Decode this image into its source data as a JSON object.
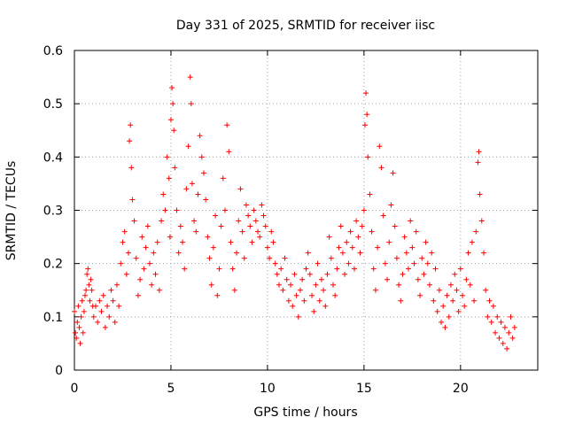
{
  "chart_data": {
    "type": "scatter",
    "title": "Day 331 of 2025, SRMTID for receiver iisc",
    "xlabel": "GPS time / hours",
    "ylabel": "SRMTID / TECUs",
    "xlim": [
      0,
      24
    ],
    "ylim": [
      0,
      0.6
    ],
    "xticks": [
      0,
      5,
      10,
      15,
      20
    ],
    "xtick_labels": [
      "0",
      "5",
      "10",
      "15",
      "20"
    ],
    "yticks": [
      0,
      0.1,
      0.2,
      0.3,
      0.4,
      0.5,
      0.6
    ],
    "ytick_labels": [
      "0",
      "0.1",
      "0.2",
      "0.3",
      "0.4",
      "0.5",
      "0.6"
    ],
    "grid": true,
    "marker": "+",
    "color": "#ff0000",
    "series": [
      {
        "name": "SRMTID",
        "points": [
          [
            0.0,
            0.11
          ],
          [
            0.05,
            0.07
          ],
          [
            0.1,
            0.06
          ],
          [
            0.15,
            0.09
          ],
          [
            0.2,
            0.12
          ],
          [
            0.25,
            0.08
          ],
          [
            0.3,
            0.05
          ],
          [
            0.35,
            0.1
          ],
          [
            0.4,
            0.13
          ],
          [
            0.45,
            0.07
          ],
          [
            0.5,
            0.11
          ],
          [
            0.55,
            0.14
          ],
          [
            0.6,
            0.15
          ],
          [
            0.65,
            0.18
          ],
          [
            0.7,
            0.19
          ],
          [
            0.75,
            0.16
          ],
          [
            0.8,
            0.13
          ],
          [
            0.85,
            0.17
          ],
          [
            0.9,
            0.15
          ],
          [
            0.95,
            0.12
          ],
          [
            1.0,
            0.1
          ],
          [
            1.1,
            0.12
          ],
          [
            1.2,
            0.09
          ],
          [
            1.3,
            0.13
          ],
          [
            1.4,
            0.11
          ],
          [
            1.5,
            0.14
          ],
          [
            1.6,
            0.08
          ],
          [
            1.7,
            0.12
          ],
          [
            1.8,
            0.1
          ],
          [
            1.9,
            0.15
          ],
          [
            2.0,
            0.13
          ],
          [
            2.1,
            0.09
          ],
          [
            2.2,
            0.16
          ],
          [
            2.3,
            0.12
          ],
          [
            2.4,
            0.2
          ],
          [
            2.5,
            0.24
          ],
          [
            2.6,
            0.26
          ],
          [
            2.7,
            0.18
          ],
          [
            2.8,
            0.22
          ],
          [
            2.85,
            0.43
          ],
          [
            2.9,
            0.46
          ],
          [
            2.95,
            0.38
          ],
          [
            3.0,
            0.32
          ],
          [
            3.1,
            0.28
          ],
          [
            3.2,
            0.21
          ],
          [
            3.3,
            0.14
          ],
          [
            3.4,
            0.17
          ],
          [
            3.5,
            0.25
          ],
          [
            3.6,
            0.19
          ],
          [
            3.7,
            0.23
          ],
          [
            3.8,
            0.27
          ],
          [
            3.9,
            0.2
          ],
          [
            4.0,
            0.16
          ],
          [
            4.1,
            0.22
          ],
          [
            4.2,
            0.18
          ],
          [
            4.3,
            0.24
          ],
          [
            4.4,
            0.15
          ],
          [
            4.5,
            0.28
          ],
          [
            4.6,
            0.33
          ],
          [
            4.7,
            0.3
          ],
          [
            4.8,
            0.4
          ],
          [
            4.9,
            0.36
          ],
          [
            4.95,
            0.25
          ],
          [
            5.0,
            0.47
          ],
          [
            5.05,
            0.53
          ],
          [
            5.1,
            0.5
          ],
          [
            5.15,
            0.45
          ],
          [
            5.2,
            0.38
          ],
          [
            5.3,
            0.3
          ],
          [
            5.4,
            0.22
          ],
          [
            5.5,
            0.27
          ],
          [
            5.6,
            0.24
          ],
          [
            5.7,
            0.19
          ],
          [
            5.8,
            0.34
          ],
          [
            5.9,
            0.42
          ],
          [
            6.0,
            0.55
          ],
          [
            6.05,
            0.5
          ],
          [
            6.1,
            0.35
          ],
          [
            6.2,
            0.28
          ],
          [
            6.3,
            0.26
          ],
          [
            6.4,
            0.33
          ],
          [
            6.5,
            0.44
          ],
          [
            6.6,
            0.4
          ],
          [
            6.7,
            0.37
          ],
          [
            6.8,
            0.32
          ],
          [
            6.9,
            0.25
          ],
          [
            7.0,
            0.21
          ],
          [
            7.1,
            0.16
          ],
          [
            7.2,
            0.23
          ],
          [
            7.3,
            0.29
          ],
          [
            7.4,
            0.14
          ],
          [
            7.5,
            0.19
          ],
          [
            7.6,
            0.27
          ],
          [
            7.7,
            0.36
          ],
          [
            7.8,
            0.3
          ],
          [
            7.9,
            0.46
          ],
          [
            8.0,
            0.41
          ],
          [
            8.1,
            0.24
          ],
          [
            8.2,
            0.19
          ],
          [
            8.3,
            0.15
          ],
          [
            8.4,
            0.22
          ],
          [
            8.5,
            0.28
          ],
          [
            8.6,
            0.34
          ],
          [
            8.7,
            0.26
          ],
          [
            8.8,
            0.21
          ],
          [
            8.9,
            0.31
          ],
          [
            9.0,
            0.29
          ],
          [
            9.1,
            0.27
          ],
          [
            9.2,
            0.24
          ],
          [
            9.3,
            0.3
          ],
          [
            9.4,
            0.28
          ],
          [
            9.5,
            0.26
          ],
          [
            9.6,
            0.25
          ],
          [
            9.7,
            0.31
          ],
          [
            9.8,
            0.29
          ],
          [
            9.9,
            0.27
          ],
          [
            10.0,
            0.23
          ],
          [
            10.1,
            0.21
          ],
          [
            10.2,
            0.26
          ],
          [
            10.3,
            0.24
          ],
          [
            10.4,
            0.2
          ],
          [
            10.5,
            0.18
          ],
          [
            10.6,
            0.16
          ],
          [
            10.7,
            0.19
          ],
          [
            10.8,
            0.15
          ],
          [
            10.9,
            0.21
          ],
          [
            11.0,
            0.17
          ],
          [
            11.1,
            0.13
          ],
          [
            11.2,
            0.16
          ],
          [
            11.3,
            0.12
          ],
          [
            11.4,
            0.18
          ],
          [
            11.5,
            0.14
          ],
          [
            11.6,
            0.1
          ],
          [
            11.7,
            0.15
          ],
          [
            11.8,
            0.17
          ],
          [
            11.9,
            0.13
          ],
          [
            12.0,
            0.19
          ],
          [
            12.1,
            0.22
          ],
          [
            12.2,
            0.18
          ],
          [
            12.3,
            0.14
          ],
          [
            12.4,
            0.11
          ],
          [
            12.5,
            0.16
          ],
          [
            12.6,
            0.2
          ],
          [
            12.7,
            0.13
          ],
          [
            12.8,
            0.17
          ],
          [
            12.9,
            0.15
          ],
          [
            13.0,
            0.12
          ],
          [
            13.1,
            0.18
          ],
          [
            13.2,
            0.25
          ],
          [
            13.3,
            0.21
          ],
          [
            13.4,
            0.16
          ],
          [
            13.5,
            0.14
          ],
          [
            13.6,
            0.19
          ],
          [
            13.7,
            0.23
          ],
          [
            13.8,
            0.27
          ],
          [
            13.9,
            0.22
          ],
          [
            14.0,
            0.18
          ],
          [
            14.1,
            0.24
          ],
          [
            14.2,
            0.2
          ],
          [
            14.3,
            0.26
          ],
          [
            14.4,
            0.23
          ],
          [
            14.5,
            0.19
          ],
          [
            14.6,
            0.28
          ],
          [
            14.7,
            0.25
          ],
          [
            14.8,
            0.22
          ],
          [
            14.9,
            0.27
          ],
          [
            15.0,
            0.3
          ],
          [
            15.05,
            0.46
          ],
          [
            15.1,
            0.52
          ],
          [
            15.15,
            0.48
          ],
          [
            15.2,
            0.4
          ],
          [
            15.3,
            0.33
          ],
          [
            15.4,
            0.26
          ],
          [
            15.5,
            0.19
          ],
          [
            15.6,
            0.15
          ],
          [
            15.7,
            0.23
          ],
          [
            15.8,
            0.42
          ],
          [
            15.9,
            0.38
          ],
          [
            16.0,
            0.29
          ],
          [
            16.1,
            0.2
          ],
          [
            16.2,
            0.17
          ],
          [
            16.3,
            0.24
          ],
          [
            16.4,
            0.31
          ],
          [
            16.5,
            0.37
          ],
          [
            16.6,
            0.27
          ],
          [
            16.7,
            0.21
          ],
          [
            16.8,
            0.16
          ],
          [
            16.9,
            0.13
          ],
          [
            17.0,
            0.18
          ],
          [
            17.1,
            0.25
          ],
          [
            17.2,
            0.22
          ],
          [
            17.3,
            0.19
          ],
          [
            17.4,
            0.28
          ],
          [
            17.5,
            0.23
          ],
          [
            17.6,
            0.2
          ],
          [
            17.7,
            0.26
          ],
          [
            17.8,
            0.17
          ],
          [
            17.9,
            0.14
          ],
          [
            18.0,
            0.21
          ],
          [
            18.1,
            0.18
          ],
          [
            18.2,
            0.24
          ],
          [
            18.3,
            0.2
          ],
          [
            18.4,
            0.16
          ],
          [
            18.5,
            0.22
          ],
          [
            18.6,
            0.13
          ],
          [
            18.7,
            0.19
          ],
          [
            18.8,
            0.11
          ],
          [
            18.9,
            0.15
          ],
          [
            19.0,
            0.09
          ],
          [
            19.1,
            0.12
          ],
          [
            19.2,
            0.08
          ],
          [
            19.3,
            0.14
          ],
          [
            19.4,
            0.1
          ],
          [
            19.5,
            0.16
          ],
          [
            19.6,
            0.13
          ],
          [
            19.7,
            0.18
          ],
          [
            19.8,
            0.15
          ],
          [
            19.9,
            0.11
          ],
          [
            20.0,
            0.19
          ],
          [
            20.1,
            0.14
          ],
          [
            20.2,
            0.12
          ],
          [
            20.3,
            0.17
          ],
          [
            20.4,
            0.22
          ],
          [
            20.5,
            0.16
          ],
          [
            20.6,
            0.24
          ],
          [
            20.7,
            0.13
          ],
          [
            20.8,
            0.26
          ],
          [
            20.9,
            0.39
          ],
          [
            20.95,
            0.41
          ],
          [
            21.0,
            0.33
          ],
          [
            21.1,
            0.28
          ],
          [
            21.2,
            0.22
          ],
          [
            21.3,
            0.15
          ],
          [
            21.4,
            0.1
          ],
          [
            21.5,
            0.13
          ],
          [
            21.6,
            0.09
          ],
          [
            21.7,
            0.12
          ],
          [
            21.8,
            0.07
          ],
          [
            21.9,
            0.1
          ],
          [
            22.0,
            0.06
          ],
          [
            22.1,
            0.09
          ],
          [
            22.2,
            0.05
          ],
          [
            22.3,
            0.08
          ],
          [
            22.4,
            0.04
          ],
          [
            22.5,
            0.07
          ],
          [
            22.6,
            0.1
          ],
          [
            22.7,
            0.06
          ],
          [
            22.8,
            0.08
          ]
        ]
      }
    ]
  }
}
